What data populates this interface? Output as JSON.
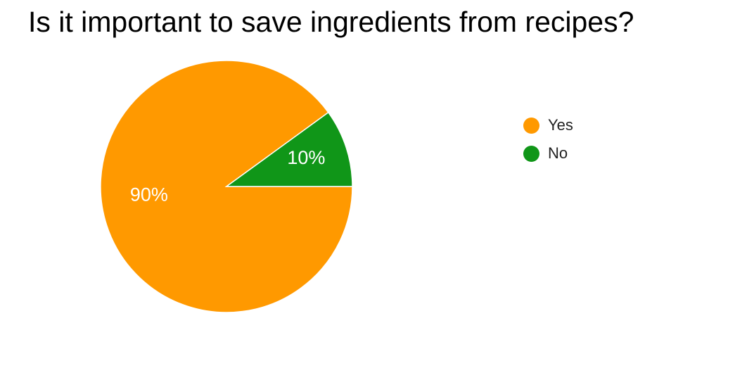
{
  "chart_data": {
    "type": "pie",
    "title": "Is it important to save ingredients from recipes?",
    "slices": [
      {
        "name": "Yes",
        "value": 90,
        "label": "90%",
        "color": "#ff9900"
      },
      {
        "name": "No",
        "value": 10,
        "label": "10%",
        "color": "#109618"
      }
    ],
    "legend_position": "right"
  }
}
